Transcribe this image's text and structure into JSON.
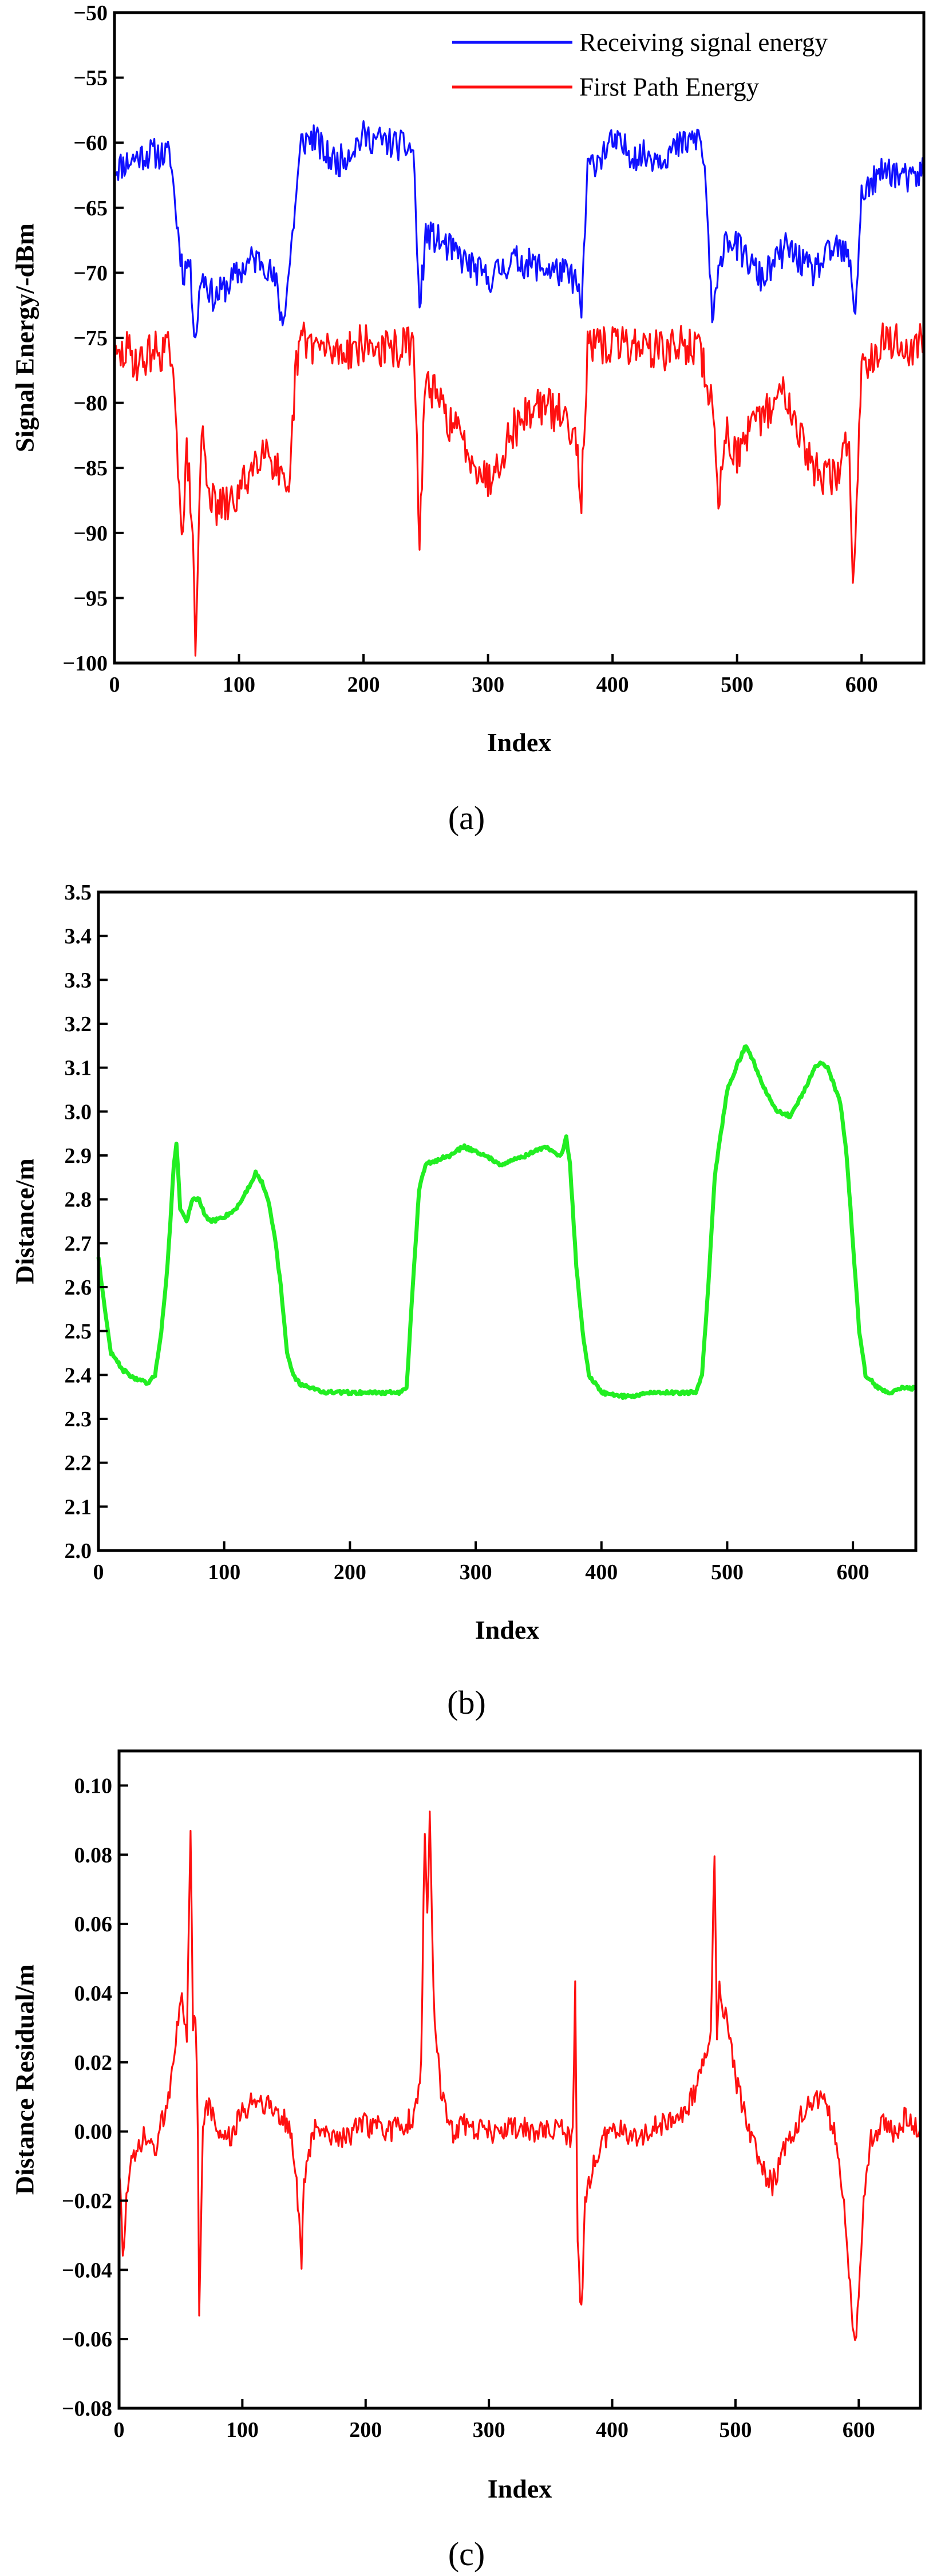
{
  "figure_captions": [
    "(a)",
    "(b)",
    "(c)"
  ],
  "chart_data": [
    {
      "type": "line",
      "caption_letter": "a",
      "xlabel": "Index",
      "ylabel": "Signal Energy/-dBm",
      "xlim": [
        0,
        650
      ],
      "ylim": [
        -100,
        -50
      ],
      "xticks": [
        0,
        100,
        200,
        300,
        400,
        500,
        600
      ],
      "yticks": [
        -100,
        -95,
        -90,
        -85,
        -80,
        -75,
        -70,
        -65,
        -60,
        -55,
        -50
      ],
      "yticklabels": [
        "−100",
        "−95",
        "−90",
        "−85",
        "−80",
        "−75",
        "−70",
        "−65",
        "−60",
        "−55",
        "−50"
      ],
      "legend_position": "top-right",
      "grid": false,
      "series": [
        {
          "name": "Receiving signal energy",
          "color": "#1010ff",
          "noise": 1.2,
          "seed": 11,
          "x": [
            0,
            10,
            20,
            30,
            45,
            50,
            55,
            60,
            65,
            70,
            80,
            90,
            100,
            110,
            120,
            130,
            135,
            140,
            150,
            160,
            170,
            180,
            200,
            220,
            240,
            245,
            250,
            260,
            280,
            300,
            320,
            340,
            360,
            370,
            375,
            380,
            400,
            420,
            440,
            460,
            470,
            475,
            480,
            490,
            500,
            520,
            540,
            560,
            580,
            590,
            595,
            600,
            620,
            640,
            650
          ],
          "y": [
            -62,
            -61.5,
            -61,
            -60.8,
            -61,
            -66,
            -70,
            -69,
            -75,
            -70,
            -72,
            -71,
            -70,
            -69,
            -69,
            -71,
            -74,
            -70,
            -60,
            -59.5,
            -61,
            -61.5,
            -59.5,
            -60,
            -60.5,
            -73,
            -67,
            -67.5,
            -69,
            -70.5,
            -69,
            -69.5,
            -70,
            -70.5,
            -73,
            -62,
            -60,
            -61,
            -61,
            -60,
            -59.5,
            -63,
            -74,
            -67,
            -68,
            -70.5,
            -68,
            -70,
            -68,
            -69,
            -73,
            -64,
            -62,
            -63,
            -62
          ]
        },
        {
          "name": "First Path Energy",
          "color": "#ff1010",
          "noise": 1.6,
          "seed": 29,
          "x": [
            0,
            10,
            20,
            30,
            45,
            50,
            55,
            58,
            62,
            65,
            70,
            75,
            80,
            90,
            100,
            110,
            120,
            130,
            140,
            145,
            150,
            160,
            170,
            180,
            200,
            220,
            240,
            245,
            250,
            260,
            280,
            300,
            320,
            340,
            360,
            370,
            375,
            380,
            400,
            420,
            440,
            460,
            470,
            480,
            485,
            490,
            500,
            520,
            540,
            560,
            580,
            590,
            593,
            600,
            620,
            640,
            650
          ],
          "y": [
            -77,
            -76,
            -77,
            -76,
            -76,
            -83,
            -90,
            -84,
            -88,
            -99,
            -82,
            -86,
            -88,
            -88,
            -87,
            -85,
            -83,
            -85,
            -88,
            -78,
            -75,
            -75.5,
            -76,
            -76,
            -75.5,
            -76,
            -75.5,
            -90,
            -78,
            -80,
            -83,
            -86,
            -82,
            -80,
            -81,
            -82,
            -87,
            -76,
            -75.5,
            -75.5,
            -76,
            -75.5,
            -76,
            -80,
            -88,
            -82,
            -84,
            -81,
            -79,
            -85,
            -86,
            -82,
            -95,
            -77,
            -75,
            -76,
            -75
          ]
        }
      ]
    },
    {
      "type": "line",
      "caption_letter": "b",
      "xlabel": "Index",
      "ylabel": "Distance/m",
      "xlim": [
        0,
        650
      ],
      "ylim": [
        2.0,
        3.5
      ],
      "xticks": [
        0,
        100,
        200,
        300,
        400,
        500,
        600
      ],
      "yticks": [
        2.0,
        2.1,
        2.2,
        2.3,
        2.4,
        2.5,
        2.6,
        2.7,
        2.8,
        2.9,
        3.0,
        3.1,
        3.2,
        3.3,
        3.4,
        3.5
      ],
      "yticklabels": [
        "2.0",
        "2.1",
        "2.2",
        "2.3",
        "2.4",
        "2.5",
        "2.6",
        "2.7",
        "2.8",
        "2.9",
        "3.0",
        "3.1",
        "3.2",
        "3.3",
        "3.4",
        "3.5"
      ],
      "grid": false,
      "series": [
        {
          "color": "#22ee22",
          "noise": 0.004,
          "seed": 47,
          "x": [
            0,
            5,
            10,
            20,
            30,
            40,
            45,
            50,
            55,
            60,
            62,
            65,
            70,
            75,
            80,
            85,
            90,
            100,
            110,
            120,
            125,
            130,
            135,
            140,
            145,
            150,
            155,
            160,
            170,
            180,
            200,
            220,
            240,
            245,
            250,
            255,
            260,
            270,
            280,
            290,
            300,
            320,
            340,
            355,
            360,
            368,
            372,
            375,
            380,
            385,
            390,
            400,
            420,
            440,
            460,
            475,
            480,
            485,
            490,
            500,
            510,
            515,
            520,
            530,
            540,
            550,
            560,
            570,
            575,
            580,
            590,
            595,
            600,
            605,
            610,
            620,
            630,
            640,
            650
          ],
          "y": [
            2.67,
            2.55,
            2.45,
            2.41,
            2.39,
            2.38,
            2.4,
            2.5,
            2.65,
            2.88,
            2.93,
            2.78,
            2.75,
            2.8,
            2.8,
            2.76,
            2.75,
            2.76,
            2.78,
            2.83,
            2.86,
            2.84,
            2.8,
            2.72,
            2.6,
            2.45,
            2.4,
            2.38,
            2.37,
            2.36,
            2.36,
            2.36,
            2.36,
            2.37,
            2.6,
            2.82,
            2.88,
            2.89,
            2.9,
            2.92,
            2.91,
            2.88,
            2.9,
            2.92,
            2.91,
            2.9,
            2.94,
            2.88,
            2.65,
            2.5,
            2.4,
            2.36,
            2.35,
            2.36,
            2.36,
            2.36,
            2.4,
            2.6,
            2.85,
            3.05,
            3.12,
            3.15,
            3.12,
            3.05,
            3.0,
            2.99,
            3.04,
            3.1,
            3.11,
            3.1,
            3.02,
            2.9,
            2.7,
            2.5,
            2.4,
            2.37,
            2.36,
            2.37,
            2.37
          ]
        }
      ]
    },
    {
      "type": "line",
      "caption_letter": "c",
      "xlabel": "Index",
      "ylabel": "Distance Residual/m",
      "xlim": [
        0,
        650
      ],
      "ylim": [
        -0.08,
        0.11
      ],
      "xticks": [
        0,
        100,
        200,
        300,
        400,
        500,
        600
      ],
      "yticks": [
        -0.08,
        -0.06,
        -0.04,
        -0.02,
        0.0,
        0.02,
        0.04,
        0.06,
        0.08,
        0.1
      ],
      "yticklabels": [
        "−0.08",
        "−0.06",
        "−0.04",
        "−0.02",
        "0.00",
        "0.02",
        "0.04",
        "0.06",
        "0.08",
        "0.10"
      ],
      "grid": false,
      "series": [
        {
          "color": "#ff1010",
          "noise": 0.0035,
          "seed": 73,
          "x": [
            0,
            3,
            6,
            10,
            20,
            30,
            40,
            45,
            50,
            55,
            58,
            60,
            62,
            64,
            65,
            68,
            70,
            75,
            80,
            90,
            100,
            110,
            120,
            130,
            140,
            145,
            148,
            150,
            155,
            160,
            170,
            180,
            200,
            220,
            240,
            245,
            248,
            250,
            252,
            255,
            260,
            265,
            270,
            280,
            300,
            320,
            340,
            360,
            368,
            370,
            372,
            374,
            376,
            378,
            380,
            390,
            400,
            420,
            440,
            460,
            475,
            480,
            483,
            485,
            487,
            490,
            495,
            500,
            510,
            520,
            530,
            540,
            550,
            560,
            570,
            580,
            588,
            592,
            595,
            598,
            600,
            605,
            610,
            620,
            630,
            640,
            650
          ],
          "y": [
            -0.01,
            -0.035,
            -0.02,
            -0.01,
            -0.002,
            -0.005,
            0.01,
            0.025,
            0.04,
            0.025,
            0.088,
            0.03,
            0.035,
            0.0,
            -0.052,
            0.0,
            0.01,
            0.005,
            0.0,
            -0.002,
            0.005,
            0.01,
            0.008,
            0.005,
            0.0,
            -0.02,
            -0.038,
            -0.015,
            -0.005,
            0.002,
            0.0,
            -0.002,
            0.002,
            0.0,
            0.004,
            0.02,
            0.088,
            0.06,
            0.091,
            0.04,
            0.015,
            0.005,
            0.0,
            0.002,
            0.0,
            0.001,
            0.0,
            0.0,
            -0.002,
            0.041,
            -0.03,
            -0.05,
            -0.045,
            -0.02,
            -0.015,
            -0.005,
            0.002,
            -0.002,
            0.002,
            0.005,
            0.02,
            0.03,
            0.08,
            0.025,
            0.04,
            0.035,
            0.03,
            0.015,
            0.002,
            -0.01,
            -0.015,
            -0.005,
            0.002,
            0.008,
            0.01,
            0.0,
            -0.02,
            -0.04,
            -0.058,
            -0.059,
            -0.045,
            -0.015,
            -0.002,
            0.002,
            0.0,
            0.005,
            0.0
          ]
        }
      ]
    }
  ]
}
